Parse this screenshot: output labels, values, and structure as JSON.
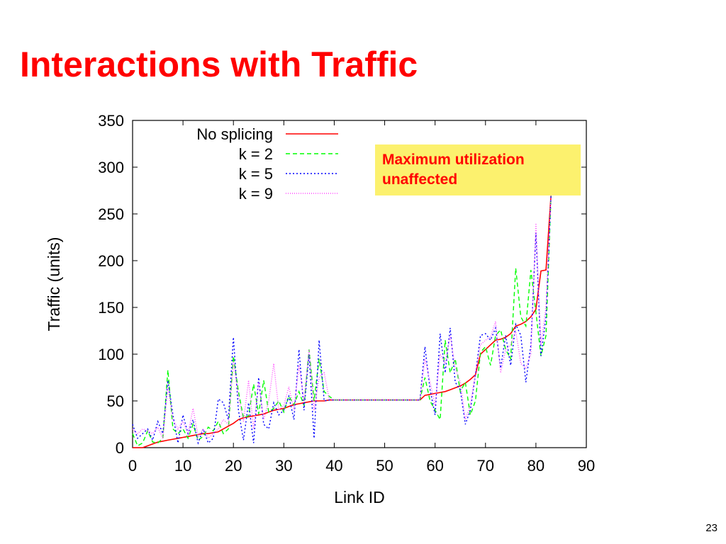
{
  "slide": {
    "title": "Interactions with Traffic",
    "page_number": "23"
  },
  "callout": {
    "line1": "Maximum utilization",
    "line2": "unaffected",
    "background": "#fcf16e",
    "text_color": "#ff0000"
  },
  "chart_data": {
    "type": "line",
    "title": "",
    "xlabel": "Link ID",
    "ylabel": "Traffic (units)",
    "xlim": [
      0,
      90
    ],
    "ylim": [
      0,
      350
    ],
    "xticks": [
      "0",
      "10",
      "20",
      "30",
      "40",
      "50",
      "60",
      "70",
      "80",
      "90"
    ],
    "yticks": [
      "0",
      "50",
      "100",
      "150",
      "200",
      "250",
      "300",
      "350"
    ],
    "grid": false,
    "legend_position": "top-left",
    "x": [
      0,
      1,
      2,
      3,
      4,
      5,
      6,
      7,
      8,
      9,
      10,
      11,
      12,
      13,
      14,
      15,
      16,
      17,
      18,
      19,
      20,
      21,
      22,
      23,
      24,
      25,
      26,
      27,
      28,
      29,
      30,
      31,
      32,
      33,
      34,
      35,
      36,
      37,
      38,
      39,
      40,
      41,
      42,
      43,
      44,
      45,
      46,
      47,
      48,
      49,
      50,
      51,
      52,
      53,
      54,
      55,
      56,
      57,
      58,
      59,
      60,
      61,
      62,
      63,
      64,
      65,
      66,
      67,
      68,
      69,
      70,
      71,
      72,
      73,
      74,
      75,
      76,
      77,
      78,
      79,
      80,
      81,
      82,
      83
    ],
    "series": [
      {
        "name": "No splicing",
        "color": "#ff0000",
        "dash": "solid",
        "values": [
          0,
          0,
          0,
          2,
          4,
          6,
          7,
          8,
          9,
          10,
          11,
          12,
          13,
          14,
          15,
          15,
          16,
          17,
          20,
          23,
          26,
          30,
          32,
          33,
          34,
          35,
          36,
          38,
          40,
          41,
          42,
          44,
          46,
          47,
          48,
          49,
          50,
          50,
          50,
          51,
          51,
          51,
          51,
          51,
          51,
          51,
          51,
          51,
          51,
          51,
          51,
          51,
          51,
          51,
          51,
          51,
          51,
          51,
          56,
          57,
          58,
          59,
          60,
          62,
          64,
          66,
          69,
          73,
          78,
          100,
          105,
          110,
          115,
          116,
          118,
          122,
          130,
          132,
          135,
          140,
          148,
          189,
          190,
          270
        ]
      },
      {
        "name": "k = 2",
        "color": "#00ff00",
        "dash": "6,4",
        "values": [
          15,
          2,
          5,
          18,
          6,
          5,
          10,
          83,
          20,
          15,
          20,
          10,
          25,
          8,
          12,
          22,
          18,
          28,
          15,
          20,
          98,
          60,
          32,
          34,
          68,
          36,
          72,
          38,
          42,
          50,
          38,
          55,
          46,
          60,
          45,
          105,
          50,
          95,
          60,
          55,
          51,
          51,
          51,
          51,
          51,
          51,
          51,
          51,
          51,
          51,
          51,
          51,
          51,
          51,
          51,
          51,
          51,
          51,
          75,
          50,
          40,
          30,
          115,
          80,
          95,
          60,
          70,
          35,
          50,
          102,
          108,
          88,
          120,
          126,
          105,
          95,
          192,
          140,
          130,
          190,
          145,
          98,
          120,
          270
        ]
      },
      {
        "name": "k = 5",
        "color": "#0000ff",
        "dash": "2,3",
        "values": [
          25,
          10,
          15,
          20,
          8,
          28,
          15,
          72,
          35,
          5,
          35,
          15,
          30,
          5,
          20,
          5,
          10,
          52,
          48,
          30,
          118,
          40,
          8,
          48,
          5,
          75,
          25,
          20,
          48,
          35,
          40,
          55,
          30,
          105,
          40,
          100,
          10,
          115,
          50,
          51,
          51,
          51,
          51,
          51,
          51,
          51,
          51,
          51,
          51,
          51,
          51,
          51,
          51,
          51,
          51,
          51,
          51,
          51,
          108,
          62,
          35,
          122,
          80,
          128,
          70,
          62,
          25,
          40,
          78,
          120,
          122,
          115,
          128,
          85,
          120,
          88,
          132,
          120,
          70,
          110,
          230,
          98,
          140,
          270
        ]
      },
      {
        "name": "k = 9",
        "color": "#ff44ff",
        "dash": "1,2",
        "values": [
          20,
          15,
          20,
          18,
          15,
          22,
          10,
          65,
          30,
          20,
          28,
          15,
          42,
          12,
          20,
          10,
          15,
          20,
          30,
          25,
          92,
          55,
          28,
          72,
          20,
          70,
          30,
          50,
          90,
          40,
          45,
          65,
          40,
          88,
          50,
          105,
          40,
          75,
          80,
          52,
          51,
          51,
          51,
          51,
          51,
          51,
          51,
          51,
          51,
          51,
          51,
          51,
          51,
          51,
          51,
          51,
          51,
          51,
          95,
          70,
          45,
          100,
          90,
          120,
          85,
          70,
          30,
          45,
          80,
          110,
          115,
          118,
          135,
          80,
          105,
          110,
          125,
          90,
          85,
          100,
          240,
          110,
          150,
          270
        ]
      }
    ]
  }
}
